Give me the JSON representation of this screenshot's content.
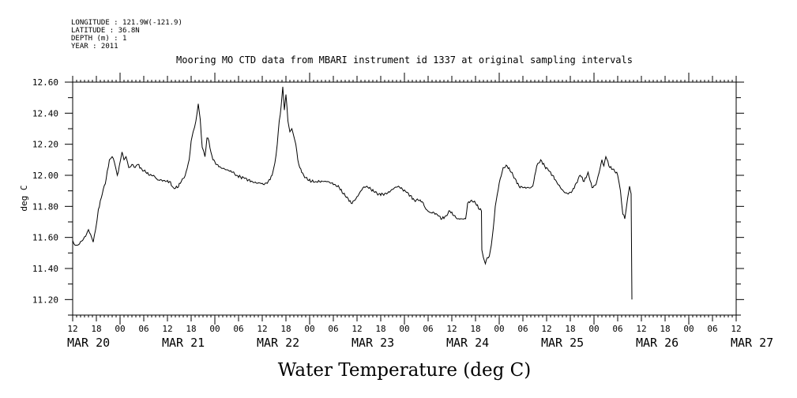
{
  "header": {
    "lines": [
      "LONGITUDE : 121.9W(-121.9)",
      "LATITUDE : 36.8N",
      "DEPTH (m) : 1",
      "YEAR : 2011"
    ],
    "title": "Mooring MO CTD data from MBARI instrument id 1337 at original sampling intervals"
  },
  "chart_data": {
    "type": "line",
    "title": "Mooring MO CTD data from MBARI instrument id 1337 at original sampling intervals",
    "xlabel": "Water Temperature (deg C)",
    "ylabel": "deg C",
    "x_unit": "hours from MAR 20 12:00",
    "xlim": [
      0,
      168
    ],
    "ylim": [
      11.1,
      12.6
    ],
    "y_ticks": [
      "11.20",
      "11.40",
      "11.60",
      "11.80",
      "12.00",
      "12.20",
      "12.40",
      "12.60"
    ],
    "x_hour_ticks": [
      "12",
      "18",
      "00",
      "06",
      "12",
      "18",
      "00",
      "06",
      "12",
      "18",
      "00",
      "06",
      "12",
      "18",
      "00",
      "06",
      "12",
      "18",
      "00",
      "06",
      "12",
      "18",
      "00",
      "06",
      "12",
      "18",
      "00",
      "06",
      "12"
    ],
    "x_date_ticks": [
      {
        "label": "MAR 20",
        "x": 0
      },
      {
        "label": "MAR 21",
        "x": 24
      },
      {
        "label": "MAR 22",
        "x": 48
      },
      {
        "label": "MAR 23",
        "x": 72
      },
      {
        "label": "MAR 24",
        "x": 96
      },
      {
        "label": "MAR 25",
        "x": 120
      },
      {
        "label": "MAR 26",
        "x": 144
      },
      {
        "label": "MAR 27",
        "x": 168
      }
    ],
    "grid": false,
    "series": [
      {
        "color": "#000000",
        "points": [
          [
            0.0,
            11.58
          ],
          [
            0.6,
            11.55
          ],
          [
            1.2,
            11.55
          ],
          [
            2.5,
            11.58
          ],
          [
            3.5,
            11.62
          ],
          [
            4.0,
            11.65
          ],
          [
            4.8,
            11.6
          ],
          [
            5.2,
            11.57
          ],
          [
            5.8,
            11.65
          ],
          [
            6.5,
            11.78
          ],
          [
            7.5,
            11.88
          ],
          [
            8.5,
            11.98
          ],
          [
            9.3,
            12.1
          ],
          [
            10.0,
            12.12
          ],
          [
            10.6,
            12.08
          ],
          [
            11.3,
            12.0
          ],
          [
            11.8,
            12.06
          ],
          [
            12.5,
            12.15
          ],
          [
            13.0,
            12.1
          ],
          [
            13.5,
            12.12
          ],
          [
            14.2,
            12.05
          ],
          [
            15.0,
            12.07
          ],
          [
            15.8,
            12.05
          ],
          [
            16.5,
            12.07
          ],
          [
            17.5,
            12.04
          ],
          [
            18.5,
            12.02
          ],
          [
            19.5,
            12.0
          ],
          [
            20.5,
            12.0
          ],
          [
            21.5,
            11.97
          ],
          [
            22.5,
            11.97
          ],
          [
            23.5,
            11.96
          ],
          [
            24.5,
            11.96
          ],
          [
            25.5,
            11.92
          ],
          [
            26.5,
            11.92
          ],
          [
            27.5,
            11.96
          ],
          [
            28.5,
            12.0
          ],
          [
            29.5,
            12.1
          ],
          [
            30.0,
            12.22
          ],
          [
            30.5,
            12.28
          ],
          [
            31.2,
            12.35
          ],
          [
            31.8,
            12.46
          ],
          [
            32.3,
            12.36
          ],
          [
            32.8,
            12.18
          ],
          [
            33.5,
            12.12
          ],
          [
            34.0,
            12.24
          ],
          [
            34.5,
            12.22
          ],
          [
            35.0,
            12.15
          ],
          [
            35.5,
            12.1
          ],
          [
            36.5,
            12.07
          ],
          [
            37.5,
            12.05
          ],
          [
            38.5,
            12.04
          ],
          [
            39.5,
            12.03
          ],
          [
            40.5,
            12.02
          ],
          [
            41.5,
            12.0
          ],
          [
            42.5,
            11.99
          ],
          [
            43.5,
            11.98
          ],
          [
            44.5,
            11.97
          ],
          [
            45.5,
            11.96
          ],
          [
            46.5,
            11.95
          ],
          [
            47.5,
            11.95
          ],
          [
            48.5,
            11.94
          ],
          [
            49.5,
            11.96
          ],
          [
            50.5,
            12.0
          ],
          [
            51.2,
            12.08
          ],
          [
            51.8,
            12.2
          ],
          [
            52.3,
            12.35
          ],
          [
            52.8,
            12.45
          ],
          [
            53.2,
            12.57
          ],
          [
            53.6,
            12.42
          ],
          [
            54.0,
            12.52
          ],
          [
            54.5,
            12.35
          ],
          [
            55.0,
            12.28
          ],
          [
            55.5,
            12.3
          ],
          [
            56.0,
            12.25
          ],
          [
            56.5,
            12.2
          ],
          [
            57.0,
            12.1
          ],
          [
            57.5,
            12.05
          ],
          [
            58.5,
            12.0
          ],
          [
            59.5,
            11.97
          ],
          [
            60.5,
            11.96
          ],
          [
            61.5,
            11.96
          ],
          [
            62.5,
            11.96
          ],
          [
            63.5,
            11.96
          ],
          [
            64.5,
            11.96
          ],
          [
            65.5,
            11.95
          ],
          [
            66.5,
            11.94
          ],
          [
            67.5,
            11.92
          ],
          [
            68.5,
            11.88
          ],
          [
            69.5,
            11.86
          ],
          [
            70.5,
            11.82
          ],
          [
            71.5,
            11.84
          ],
          [
            72.5,
            11.88
          ],
          [
            73.5,
            11.92
          ],
          [
            74.5,
            11.93
          ],
          [
            75.5,
            11.91
          ],
          [
            76.5,
            11.89
          ],
          [
            77.5,
            11.88
          ],
          [
            78.5,
            11.88
          ],
          [
            79.5,
            11.88
          ],
          [
            80.5,
            11.9
          ],
          [
            81.5,
            11.92
          ],
          [
            82.5,
            11.93
          ],
          [
            83.5,
            11.91
          ],
          [
            84.5,
            11.89
          ],
          [
            85.5,
            11.87
          ],
          [
            86.5,
            11.84
          ],
          [
            87.5,
            11.84
          ],
          [
            88.5,
            11.83
          ],
          [
            89.5,
            11.78
          ],
          [
            90.5,
            11.76
          ],
          [
            91.5,
            11.76
          ],
          [
            92.5,
            11.74
          ],
          [
            93.5,
            11.72
          ],
          [
            94.5,
            11.74
          ],
          [
            95.5,
            11.77
          ],
          [
            96.5,
            11.74
          ],
          [
            97.5,
            11.72
          ],
          [
            98.5,
            11.72
          ],
          [
            99.5,
            11.72
          ],
          [
            100.0,
            11.82
          ],
          [
            101.0,
            11.84
          ],
          [
            102.0,
            11.82
          ],
          [
            103.0,
            11.78
          ],
          [
            103.5,
            11.77
          ],
          [
            103.6,
            11.52
          ],
          [
            104.0,
            11.47
          ],
          [
            104.5,
            11.43
          ],
          [
            105.0,
            11.47
          ],
          [
            105.5,
            11.48
          ],
          [
            106.0,
            11.55
          ],
          [
            106.5,
            11.66
          ],
          [
            107.0,
            11.8
          ],
          [
            108.0,
            11.95
          ],
          [
            109.0,
            12.05
          ],
          [
            110.0,
            12.06
          ],
          [
            111.0,
            12.02
          ],
          [
            112.0,
            11.98
          ],
          [
            113.0,
            11.93
          ],
          [
            114.0,
            11.92
          ],
          [
            115.0,
            11.92
          ],
          [
            116.0,
            11.92
          ],
          [
            116.5,
            11.93
          ],
          [
            117.5,
            12.06
          ],
          [
            118.5,
            12.1
          ],
          [
            119.5,
            12.06
          ],
          [
            120.5,
            12.03
          ],
          [
            121.5,
            12.0
          ],
          [
            122.5,
            11.96
          ],
          [
            123.5,
            11.92
          ],
          [
            124.5,
            11.89
          ],
          [
            125.5,
            11.88
          ],
          [
            126.5,
            11.9
          ],
          [
            127.5,
            11.95
          ],
          [
            128.5,
            12.0
          ],
          [
            129.5,
            11.96
          ],
          [
            130.5,
            12.02
          ],
          [
            131.5,
            11.92
          ],
          [
            132.5,
            11.94
          ],
          [
            133.5,
            12.04
          ],
          [
            134.0,
            12.1
          ],
          [
            134.5,
            12.06
          ],
          [
            135.0,
            12.12
          ],
          [
            136.0,
            12.05
          ],
          [
            137.0,
            12.04
          ],
          [
            138.0,
            12.0
          ],
          [
            138.7,
            11.9
          ],
          [
            139.3,
            11.75
          ],
          [
            139.8,
            11.72
          ],
          [
            140.5,
            11.85
          ],
          [
            141.0,
            11.93
          ],
          [
            141.4,
            11.88
          ],
          [
            141.6,
            11.2
          ]
        ]
      }
    ]
  }
}
